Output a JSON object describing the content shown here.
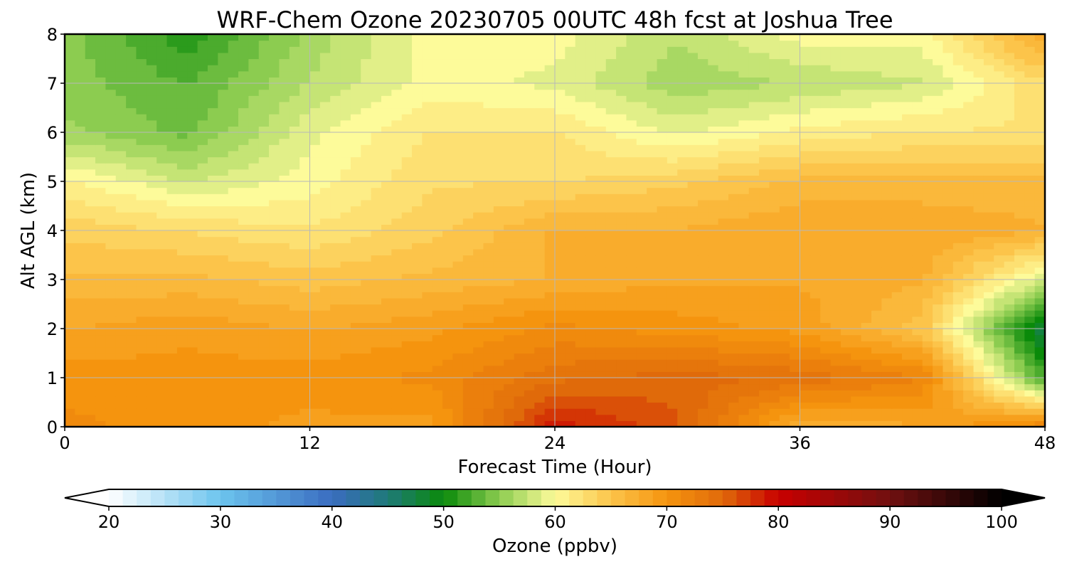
{
  "chart_data": {
    "type": "heatmap",
    "title": "WRF-Chem Ozone  20230705 00UTC 48h fcst at Joshua Tree",
    "xlabel": "Forecast Time (Hour)",
    "ylabel": "Alt AGL (km)",
    "xlim": [
      0,
      48
    ],
    "ylim": [
      0,
      8
    ],
    "xticks": [
      "0",
      "12",
      "24",
      "36",
      "48"
    ],
    "yticks": [
      "0",
      "1",
      "2",
      "3",
      "4",
      "5",
      "6",
      "7",
      "8"
    ],
    "grid": true,
    "x": [
      0,
      6,
      12,
      18,
      24,
      30,
      36,
      42,
      48
    ],
    "y": [
      0,
      1,
      2,
      3,
      4,
      5,
      6,
      7,
      8
    ],
    "z": [
      [
        71,
        70,
        69,
        69,
        79,
        76,
        67,
        68,
        72
      ],
      [
        70,
        70,
        70,
        71,
        74,
        75,
        74,
        72,
        52
      ],
      [
        68,
        69,
        68,
        69,
        71,
        70,
        69,
        65,
        47
      ],
      [
        66,
        66,
        65,
        66,
        67,
        68,
        68,
        67,
        58
      ],
      [
        64,
        63,
        62,
        64,
        67,
        67,
        68,
        68,
        67
      ],
      [
        61,
        58,
        60,
        63,
        63,
        64,
        66,
        66,
        66
      ],
      [
        56,
        54,
        59,
        62,
        62,
        59,
        61,
        62,
        62
      ],
      [
        55,
        53,
        57,
        60,
        59,
        56,
        57,
        58,
        63
      ],
      [
        55,
        51,
        56,
        60,
        60,
        57,
        60,
        60,
        68
      ]
    ],
    "colorbar": {
      "label": "Ozone  (ppbv)",
      "min": 20,
      "max": 100,
      "ticks": [
        "20",
        "30",
        "40",
        "50",
        "60",
        "70",
        "80",
        "90",
        "100"
      ],
      "extend": "both",
      "colors": {
        "20": "#ffffff",
        "30": "#6cc4ee",
        "40": "#3a6cc0",
        "45": "#1e7a78",
        "50": "#0a8a0a",
        "55": "#8ccc50",
        "60": "#fdfb9a",
        "65": "#fcc44a",
        "70": "#f5940e",
        "75": "#e06a0a",
        "80": "#c80000",
        "90": "#701010",
        "100": "#000000"
      }
    }
  }
}
